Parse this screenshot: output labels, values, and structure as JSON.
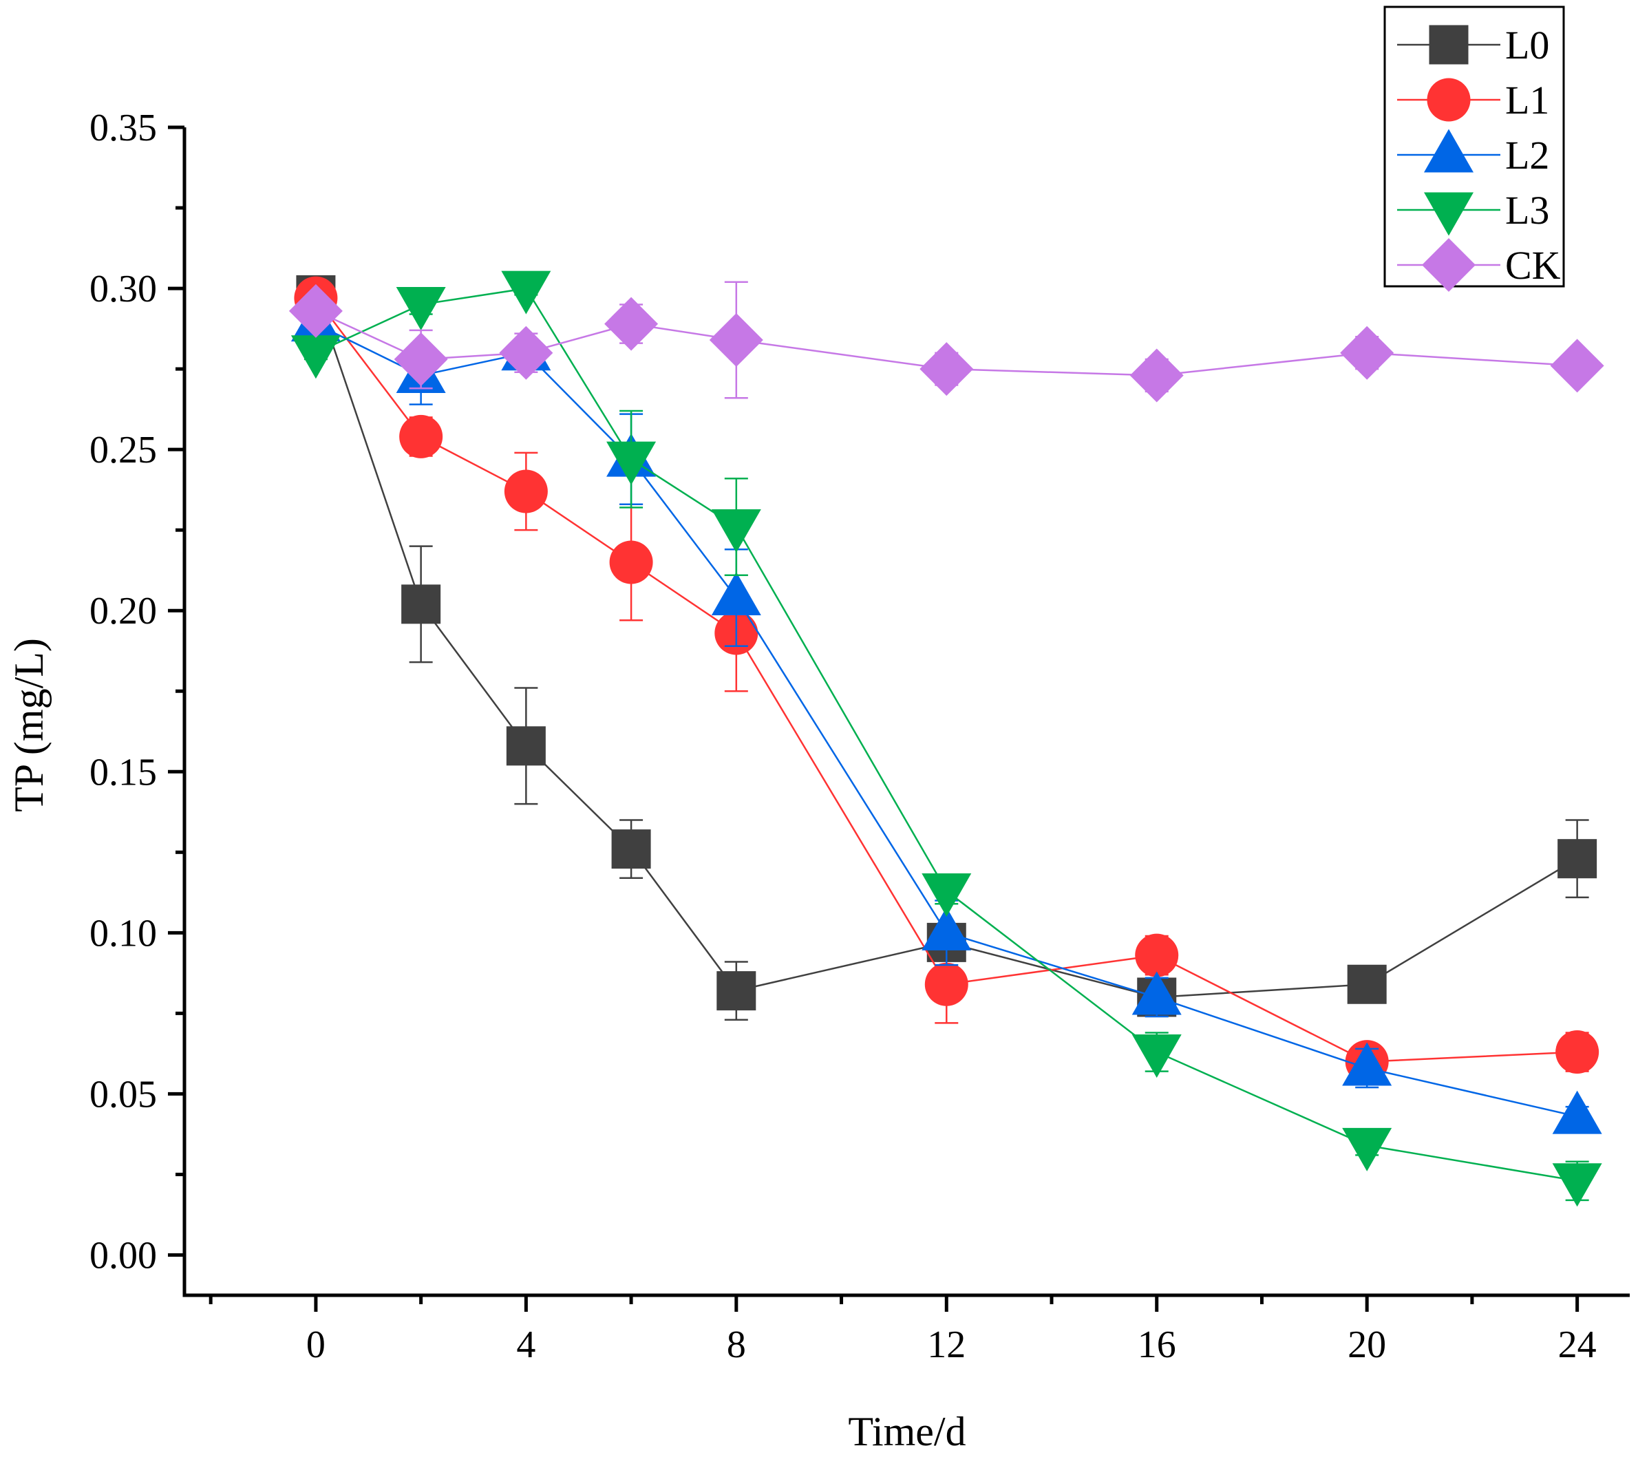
{
  "chart_data": {
    "type": "line",
    "title": "",
    "xlabel": "Time/d",
    "ylabel": "TP (mg/L)",
    "xlim": [
      -2.5,
      25
    ],
    "ylim": [
      -0.0125,
      0.35
    ],
    "x_ticks": [
      0,
      4,
      8,
      12,
      16,
      20,
      24
    ],
    "x_tick_labels": [
      "0",
      "4",
      "8",
      "12",
      "16",
      "20",
      "24"
    ],
    "x_minor_ticks": [
      -2,
      2,
      6,
      10,
      14,
      18,
      22
    ],
    "y_ticks": [
      0.0,
      0.05,
      0.1,
      0.15,
      0.2,
      0.25,
      0.3,
      0.35
    ],
    "y_tick_labels": [
      "0.00",
      "0.05",
      "0.10",
      "0.15",
      "0.20",
      "0.25",
      "0.30",
      "0.35"
    ],
    "y_minor_ticks": [
      0.025,
      0.075,
      0.125,
      0.175,
      0.225,
      0.275,
      0.325
    ],
    "grid": false,
    "legend_position": "top-right",
    "x": [
      0,
      2,
      4,
      6,
      8,
      12,
      16,
      20,
      24
    ],
    "series": [
      {
        "name": "L0",
        "marker": "square",
        "color": "#404040",
        "values": [
          0.298,
          0.202,
          0.158,
          0.126,
          0.082,
          0.097,
          0.08,
          0.084,
          0.123
        ],
        "errors": [
          0.002,
          0.018,
          0.018,
          0.009,
          0.009,
          0.004,
          0.003,
          0.002,
          0.012
        ]
      },
      {
        "name": "L1",
        "marker": "circle",
        "color": "#ff3333",
        "values": [
          0.297,
          0.254,
          0.237,
          0.215,
          0.193,
          0.084,
          0.093,
          0.06,
          0.063
        ],
        "errors": [
          0.002,
          0.006,
          0.012,
          0.018,
          0.018,
          0.012,
          0.006,
          0.003,
          0.006
        ]
      },
      {
        "name": "L2",
        "marker": "triangle-up",
        "color": "#0066e6",
        "values": [
          0.289,
          0.273,
          0.28,
          0.247,
          0.204,
          0.1,
          0.08,
          0.058,
          0.043
        ],
        "errors": [
          0.003,
          0.009,
          0.003,
          0.014,
          0.015,
          0.01,
          0.006,
          0.006,
          0.003
        ]
      },
      {
        "name": "L3",
        "marker": "triangle-down",
        "color": "#00b050",
        "values": [
          0.28,
          0.295,
          0.3,
          0.247,
          0.226,
          0.113,
          0.063,
          0.034,
          0.023
        ],
        "errors": [
          0.002,
          0.003,
          0.002,
          0.015,
          0.015,
          0.004,
          0.006,
          0.003,
          0.006
        ]
      },
      {
        "name": "CK",
        "marker": "diamond",
        "color": "#c678e6",
        "values": [
          0.293,
          0.278,
          0.28,
          0.289,
          0.284,
          0.275,
          0.273,
          0.28,
          0.276
        ],
        "errors": [
          0.003,
          0.009,
          0.006,
          0.006,
          0.018,
          0.005,
          0.005,
          0.005,
          0.004
        ]
      }
    ]
  }
}
